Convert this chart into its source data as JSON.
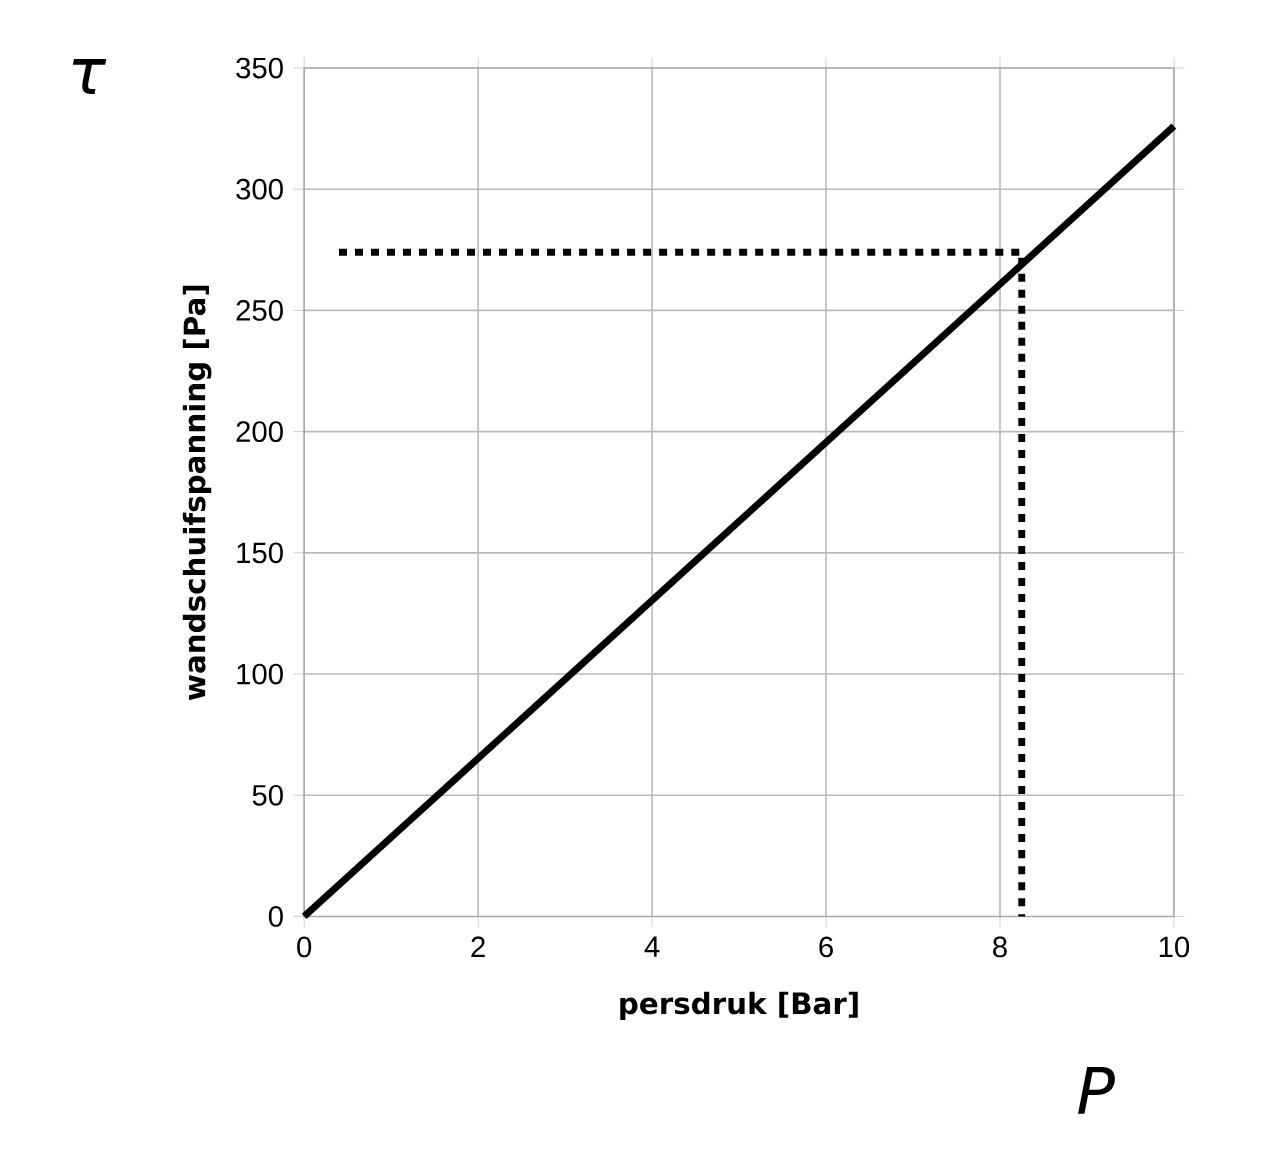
{
  "chart_data": {
    "type": "line",
    "xlabel": "persdruk [Bar]",
    "ylabel": "wandschuifspanning  [Pa]",
    "annotations": [
      "τ",
      "P"
    ],
    "xlim": [
      0,
      10
    ],
    "xticks": [
      0,
      2,
      4,
      6,
      8,
      10
    ],
    "ylim": [
      0,
      350
    ],
    "yticks": [
      0,
      50,
      100,
      150,
      200,
      250,
      300,
      350
    ],
    "grid": true,
    "marker": "none",
    "series": [
      {
        "x": [
          0,
          10
        ],
        "values": [
          0,
          326
        ],
        "color": "#000000",
        "line_style": "solid"
      },
      {
        "x": [
          0.4,
          8.25,
          8.25
        ],
        "values": [
          274,
          274,
          0
        ],
        "color": "#000000",
        "line_style": "dotted"
      }
    ]
  }
}
